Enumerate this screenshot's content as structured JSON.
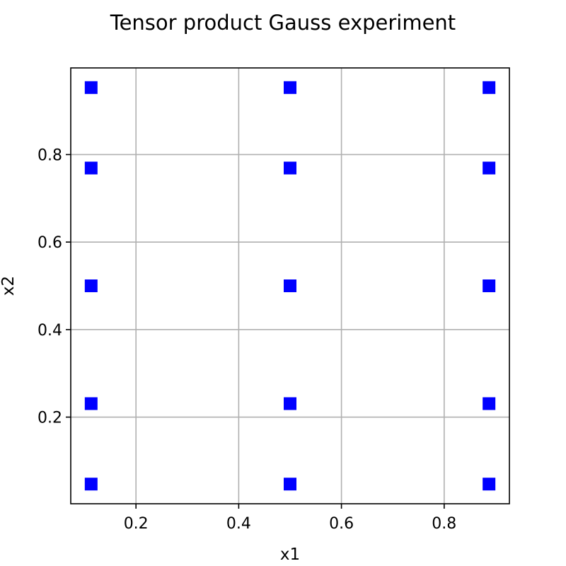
{
  "chart_data": {
    "type": "scatter",
    "title": "Tensor product Gauss experiment",
    "xlabel": "x1",
    "ylabel": "x2",
    "xlim": [
      0.073,
      0.927
    ],
    "ylim": [
      0.002,
      0.998
    ],
    "xticks": [
      0.2,
      0.4,
      0.6,
      0.8
    ],
    "yticks": [
      0.2,
      0.4,
      0.6,
      0.8
    ],
    "xtick_labels": [
      "0.2",
      "0.4",
      "0.6",
      "0.8"
    ],
    "ytick_labels": [
      "0.2",
      "0.4",
      "0.6",
      "0.8"
    ],
    "grid": true,
    "marker": "square",
    "color": "#0000ff",
    "x": [
      0.1127,
      0.1127,
      0.1127,
      0.1127,
      0.1127,
      0.5,
      0.5,
      0.5,
      0.5,
      0.5,
      0.8873,
      0.8873,
      0.8873,
      0.8873,
      0.8873
    ],
    "y": [
      0.0469,
      0.2308,
      0.5,
      0.7692,
      0.9531,
      0.0469,
      0.2308,
      0.5,
      0.7692,
      0.9531,
      0.0469,
      0.2308,
      0.5,
      0.7692,
      0.9531
    ]
  }
}
